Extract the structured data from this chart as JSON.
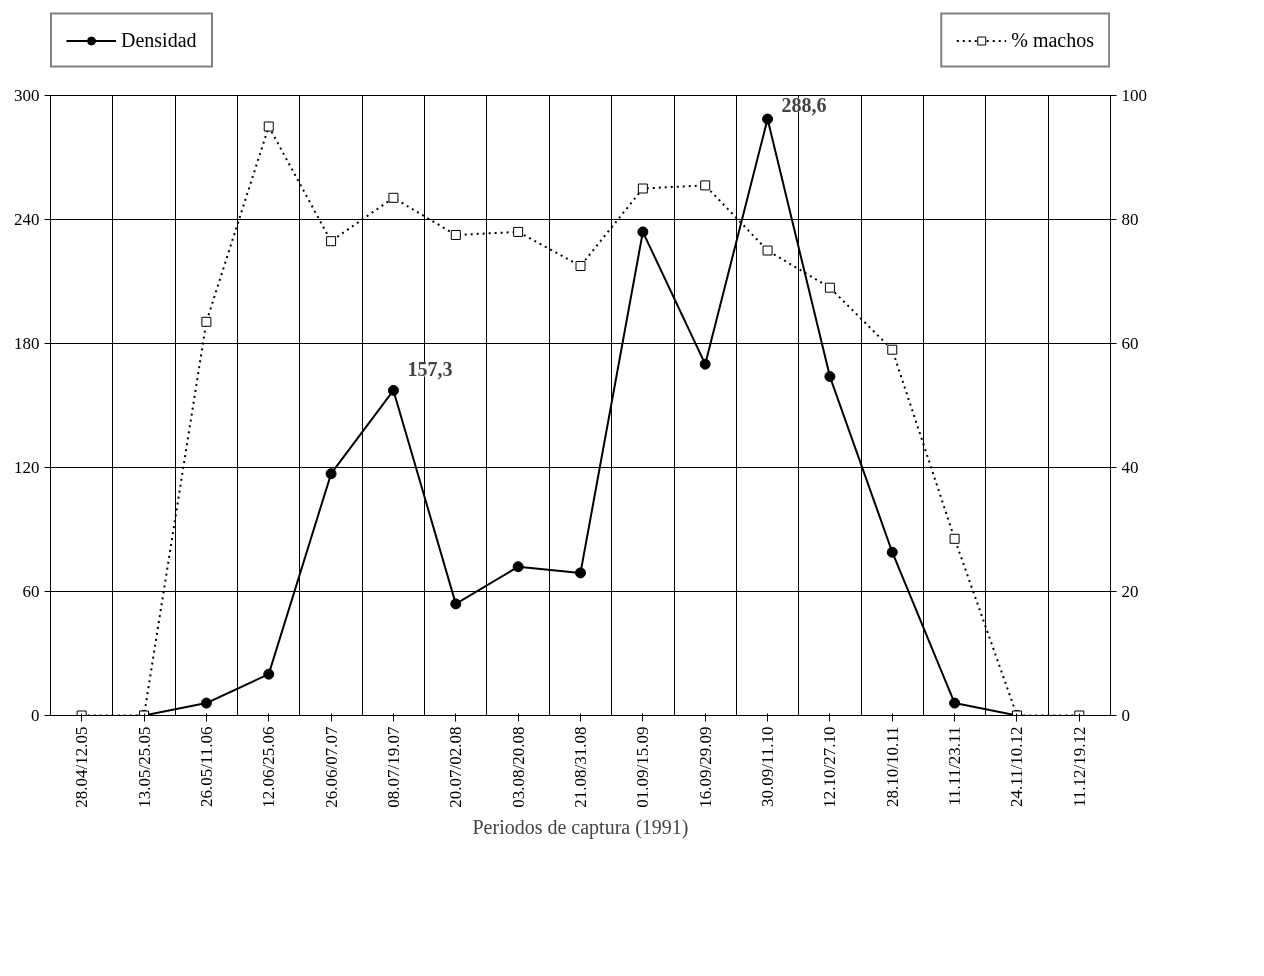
{
  "chart_data": {
    "type": "line",
    "xlabel": "Periodos de captura (1991)",
    "categories": [
      "28.04/12.05",
      "13.05/25.05",
      "26.05/11.06",
      "12.06/25.06",
      "26.06/07.07",
      "08.07/19.07",
      "20.07/02.08",
      "03.08/20.08",
      "21.08/31.08",
      "01.09/15.09",
      "16.09/29.09",
      "30.09/11.10",
      "12.10/27.10",
      "28.10/10.11",
      "11.11/23.11",
      "24.11/10.12",
      "11.12/19.12"
    ],
    "series": [
      {
        "name": "Densidad",
        "color": "#000000",
        "marker": "circle",
        "line_style": "solid",
        "values": [
          null,
          0,
          6,
          20,
          117,
          157.3,
          54,
          72,
          69,
          234,
          170,
          288.6,
          164,
          79,
          6,
          0,
          null
        ]
      },
      {
        "name": "% machos",
        "color": "#000000",
        "marker": "square",
        "line_style": "dotted",
        "axis": "y2",
        "values": [
          0,
          0,
          63.5,
          95,
          76.5,
          83.5,
          77.5,
          78,
          72.5,
          85,
          85.5,
          75,
          69,
          59,
          28.5,
          0,
          0
        ]
      }
    ],
    "ylim": [
      0,
      300
    ],
    "yticks": [
      0,
      60,
      120,
      180,
      240,
      300
    ],
    "y2lim": [
      0,
      100
    ],
    "y2ticks": [
      0,
      20,
      40,
      60,
      80,
      100
    ],
    "annotations": [
      {
        "text": "157,3",
        "x": "08.07/19.07",
        "y": 157.3
      },
      {
        "text": "288,6",
        "x": "30.09/11.10",
        "y": 288.6
      }
    ],
    "grid": true,
    "legend": "top"
  }
}
